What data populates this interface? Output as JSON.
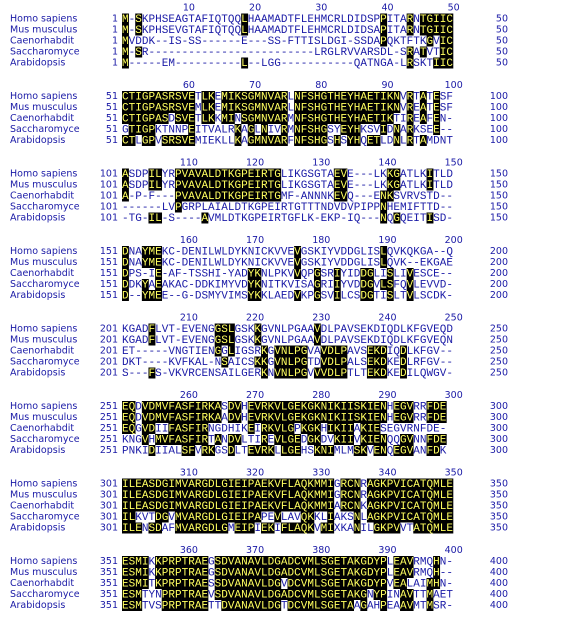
{
  "names": [
    "Homo sapiens",
    "Mus musculus",
    "Caenorhabdit",
    "Saccharomyce",
    "Arabidopsis"
  ],
  "blocks": [
    {
      "ruler": [
        10,
        20,
        30,
        40,
        50
      ],
      "start": 1,
      "end": 50,
      "rows": [
        "M-SKPHSEAGTAFIQTQQLHAAMADTFLEHMCRLDIDSPPITARNTGIIC",
        "M-SKPHSEVGTAFIQTQQLHAAMADTFLEHMCRLDIDSAPITARNTGIIC",
        "MVDDK--IS-SS------E---SS-FTTISLDGI-SSDAPQKTFTKGVIC",
        "M-SR-------------------------LRGLRVVARSDL-SRATVTIC",
        "M-----EM----------L--LGG-----------QATNGA-LRSKTIIC"
      ]
    },
    {
      "ruler": [
        60,
        70,
        80,
        90,
        100
      ],
      "start": 51,
      "end": 100,
      "rows": [
        "CTIGPASRSVETLKEMIKSGMNVARLNFSHGTHEYHAETIKNVRTATESF",
        "CTIGPASRSVEMLKEMIKSGMNVARLNFSHGTHEYHAETIKNVREATESF",
        "CTIGPASDSVETLKKMINSGMNVARMNFSHGTHEYHAETIKTIREAFEN-",
        "GTIGPKTNNPEITVALRKAGLNIVRMNFSHGSYEYHKSVIDNARKSEE--",
        "CTLGPVSRSVEMIEKLLKAGMNVARFNFSHGSHSYHQETLDNLRTAMDNT"
      ]
    },
    {
      "ruler": [
        110,
        120,
        130,
        140,
        150
      ],
      "start": 101,
      "end": 150,
      "rows": [
        "ASDPILYRPVAVALDTKGPEIRTGLIKGSGTAEVE---LKKGATLKITLD",
        "ASDPILYRPVAVALDTKGPEIRTGLIKGSGTAEVE---LKKGATLKITLD",
        "A-P-F---PVAVALDTKGPEIRTGMF-ANNNKEVQ---ENKSVRVSTD--",
        "------LVPGRPLAIALDTKGPEIRTGTTTNDVDVPIPPNHEMIFTTD--",
        "-TG-IL-S----AVMLDTKGPEIRTGFLK-EKP-IQ---NQGQEITISD-"
      ]
    },
    {
      "ruler": [
        160,
        170,
        180,
        190,
        200
      ],
      "start": 151,
      "end": 200,
      "rows": [
        "DNAYMEKC-DENILWLDYKNICKVVEVGSKIYVDDGLISLQVKQKGA--Q",
        "DNAYMEKC-DENILWLDYKNICKVVEVGSKIYVDDGLISLQVK--EKGAE",
        "DPS-IE-AF-TSSHI-YADYKNLPKVVQPGSRIYIDDGLISLIVESCE--",
        "DDKYAEAKAC-DDKIMYVDYKNITKVISAGRIIYVDDGVLSFQVLEVVD-",
        "D--YMEE--G-DSMYVIMSYKKLAEDVKPGSVILCSDGTISLTVLSCDK-"
      ]
    },
    {
      "ruler": [
        210,
        220,
        230,
        240,
        250
      ],
      "start": 201,
      "end": 250,
      "rows": [
        "KGADFLVT-EVENGGSLGSKKGVNLPGAAVDLPAVSEKDIQDLKFGVEQD",
        "KGADFLVT-EVENGGSLGSKKGVNLPGAAVDLPAVSEKDIQDLKFGVEQN",
        "ET-----VNGTIENGGLIGSRKGVNLPGVAVDLPAVSEKDIQDLKFGV--",
        "DKT----KVFKAL-NSAICSKKGVNLPGTDVDLPALSEKDKEDLRFGV--",
        "S---FS-VKVRCENSAILGERKNVNLPGVVVDLPTLTEKDKEDILQWGV-"
      ]
    },
    {
      "ruler": [
        260,
        270,
        280,
        290,
        300
      ],
      "start": 251,
      "end": 300,
      "rows": [
        "EQDVDMVFASFIRKASDVHEVRKVLGEKGKNIKIISKIENHEGVRRFDE",
        "EQDVDMVFASFIRKAADVHEVRKVLGEKGKNIKIISKIENHEGVRRFDE",
        "EQGVDIIFASFIRNGDHIKEIRKVLGPKGKHIKIIAKIESEGVRNFDE-",
        "KNGVHMVFASFIRTANDVLTIREVLGEDGKDVKIIVKIENQQGVNNFDE",
        "PNKIDIIALSFVRKGSDLTEVRKLLGEHSKNIMLMSKVENQEGVANFDK"
      ]
    },
    {
      "ruler": [
        310,
        320,
        330,
        340,
        350
      ],
      "start": 301,
      "end": 350,
      "rows": [
        "ILEASDGIMVARGDLGIEIPAEKVFLAQKMMIGRCNRAGKPVICATQMLE",
        "ILEASDGIMVARGDLGIEIPAEKVFLAQKMMIGRCNRAGKPVICATQMLE",
        "ILEASDGIMVARGDLGIEIPAEKVFLAQKMMIARCNKAGKPVICATQMLE",
        "ILKVTDGVMVARGDLGIEIPAPEVLAVQKKLIAKSNLAGKPVICATQMLE",
        "ILENSDAFMVARGDLGMEIPIEKIFLAQKVMIXKANILGKPVVTATQMLE"
      ]
    },
    {
      "ruler": [
        360,
        370,
        380,
        390,
        400
      ],
      "start": 351,
      "end": 400,
      "rows": [
        "ESMIKKPRPTRAEGSDVANAVLDGADCVMLSGETAKGDYPLEAVRMQHN-",
        "ESMIKKPRPTRAEGSDVANAVLDGADCVMLSGETAKGDYPLEAVRMQH--",
        "ESMITKPRPTRAESSDVANAVLDGVDCVMLSGETAKGDYPVEALAIMHN-",
        "ESMTYNPRPTRAEVSDVANAVLDGADCVMLSGETAKGNYPINAVTTMAET",
        "ESMTVSPRPTRAETTDVANAVLDGTDCVMLSGETAAGAHPEAAVMTMSR-"
      ]
    }
  ]
}
